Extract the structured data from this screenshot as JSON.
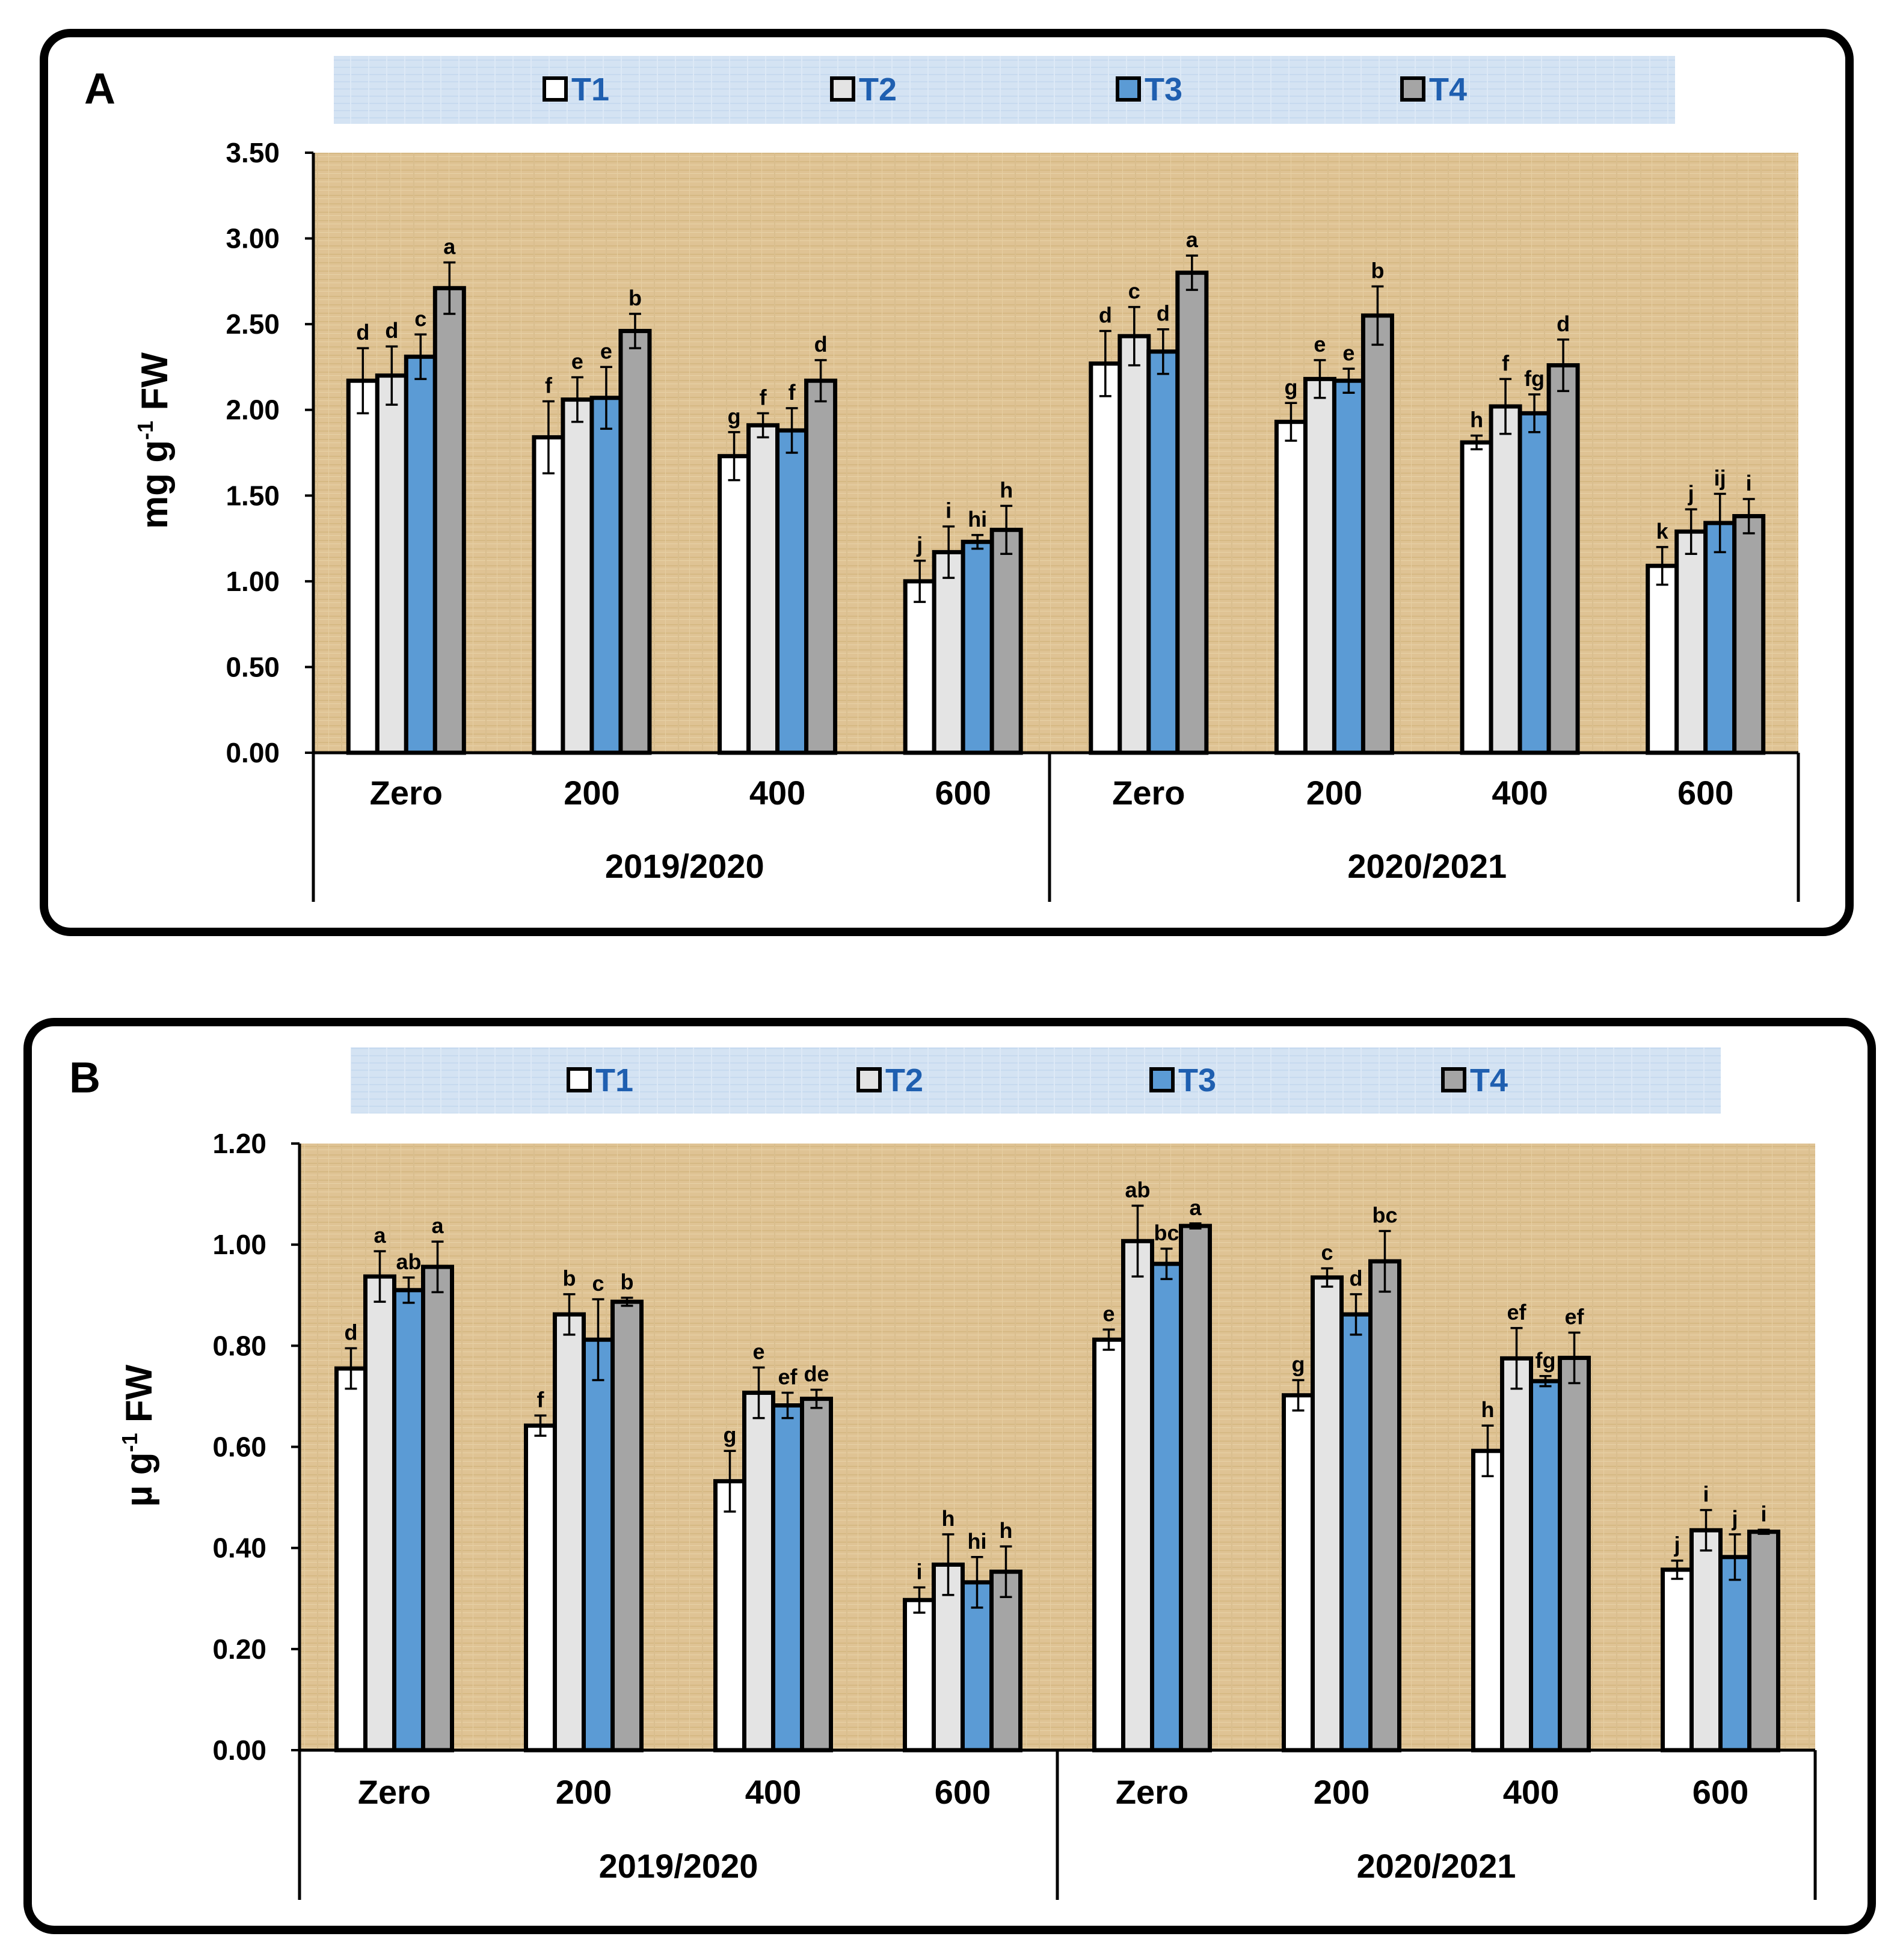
{
  "legend": {
    "labels": [
      "T1",
      "T2",
      "T3",
      "T4"
    ],
    "colors": [
      "#ffffff",
      "#e4e4e4",
      "#5b9bd5",
      "#a5a5a5"
    ]
  },
  "chart_data": [
    {
      "type": "bar",
      "panel": "A",
      "ylabel_main": "mg g",
      "ylabel_sup": "-1",
      "ylabel_tail": " FW",
      "ylim": [
        0,
        3.5
      ],
      "yticks": [
        "0.00",
        "0.50",
        "1.00",
        "1.50",
        "2.00",
        "2.50",
        "3.00",
        "3.50"
      ],
      "groups": [
        {
          "label": "2019/2020",
          "categories": [
            "Zero",
            "200",
            "400",
            "600"
          ]
        },
        {
          "label": "2020/2021",
          "categories": [
            "Zero",
            "200",
            "400",
            "600"
          ]
        }
      ],
      "series": [
        {
          "name": "T1",
          "values": [
            2.17,
            1.84,
            1.73,
            1.0,
            2.27,
            1.93,
            1.81,
            1.09
          ],
          "errors": [
            0.19,
            0.21,
            0.14,
            0.12,
            0.19,
            0.11,
            0.04,
            0.11
          ],
          "letters": [
            "d",
            "f",
            "g",
            "j",
            "d",
            "g",
            "h",
            "k"
          ]
        },
        {
          "name": "T2",
          "values": [
            2.2,
            2.06,
            1.91,
            1.17,
            2.43,
            2.18,
            2.02,
            1.29
          ],
          "errors": [
            0.17,
            0.13,
            0.07,
            0.15,
            0.17,
            0.11,
            0.16,
            0.13
          ],
          "letters": [
            "d",
            "e",
            "f",
            "i",
            "c",
            "e",
            "f",
            "j"
          ]
        },
        {
          "name": "T3",
          "values": [
            2.31,
            2.07,
            1.88,
            1.23,
            2.34,
            2.17,
            1.98,
            1.34
          ],
          "errors": [
            0.13,
            0.18,
            0.13,
            0.04,
            0.13,
            0.07,
            0.11,
            0.17
          ],
          "letters": [
            "c",
            "e",
            "f",
            "hi",
            "d",
            "e",
            "fg",
            "ij"
          ]
        },
        {
          "name": "T4",
          "values": [
            2.71,
            2.46,
            2.17,
            1.3,
            2.8,
            2.55,
            2.26,
            1.38
          ],
          "errors": [
            0.15,
            0.1,
            0.12,
            0.14,
            0.1,
            0.17,
            0.15,
            0.1
          ],
          "letters": [
            "a",
            "b",
            "d",
            "h",
            "a",
            "b",
            "d",
            "i"
          ]
        }
      ]
    },
    {
      "type": "bar",
      "panel": "B",
      "ylabel_main": "µ g",
      "ylabel_sup": "-1",
      "ylabel_tail": " FW",
      "ylim": [
        0,
        1.2
      ],
      "yticks": [
        "0.00",
        "0.20",
        "0.40",
        "0.60",
        "0.80",
        "1.00",
        "1.20"
      ],
      "groups": [
        {
          "label": "2019/2020",
          "categories": [
            "Zero",
            "200",
            "400",
            "600"
          ]
        },
        {
          "label": "2020/2021",
          "categories": [
            "Zero",
            "200",
            "400",
            "600"
          ]
        }
      ],
      "series": [
        {
          "name": "T1",
          "values": [
            0.755,
            0.642,
            0.532,
            0.297,
            0.812,
            0.702,
            0.592,
            0.357
          ],
          "errors": [
            0.04,
            0.02,
            0.06,
            0.025,
            0.02,
            0.03,
            0.05,
            0.018
          ],
          "letters": [
            "d",
            "f",
            "g",
            "i",
            "e",
            "g",
            "h",
            "j"
          ]
        },
        {
          "name": "T2",
          "values": [
            0.937,
            0.862,
            0.707,
            0.367,
            1.007,
            0.935,
            0.775,
            0.435
          ],
          "errors": [
            0.05,
            0.04,
            0.05,
            0.06,
            0.07,
            0.018,
            0.06,
            0.04
          ],
          "letters": [
            "a",
            "b",
            "e",
            "h",
            "ab",
            "c",
            "ef",
            "i"
          ]
        },
        {
          "name": "T3",
          "values": [
            0.91,
            0.812,
            0.682,
            0.332,
            0.962,
            0.862,
            0.73,
            0.382
          ],
          "errors": [
            0.025,
            0.08,
            0.025,
            0.05,
            0.03,
            0.04,
            0.01,
            0.045
          ],
          "letters": [
            "ab",
            "c",
            "ef",
            "hi",
            "bc",
            "d",
            "fg",
            "j"
          ]
        },
        {
          "name": "T4",
          "values": [
            0.956,
            0.887,
            0.695,
            0.353,
            1.037,
            0.967,
            0.776,
            0.432
          ],
          "errors": [
            0.05,
            0.008,
            0.018,
            0.05,
            0.005,
            0.06,
            0.05,
            0.004
          ],
          "letters": [
            "a",
            "b",
            "de",
            "h",
            "a",
            "bc",
            "ef",
            "i"
          ]
        }
      ]
    }
  ]
}
